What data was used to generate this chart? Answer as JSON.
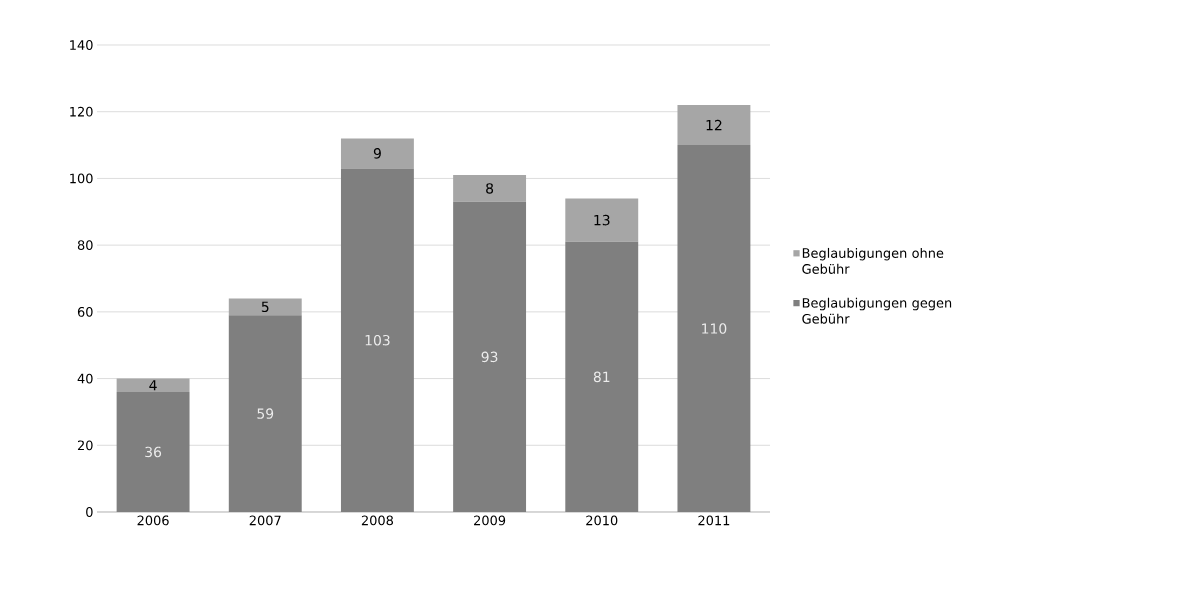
{
  "chart_data": {
    "type": "bar",
    "stacked": true,
    "categories": [
      "2006",
      "2007",
      "2008",
      "2009",
      "2010",
      "2011"
    ],
    "series": [
      {
        "name": "Beglaubigungen gegen Gebühr",
        "color": "#7f7f7f",
        "values": [
          36,
          59,
          103,
          93,
          81,
          110
        ]
      },
      {
        "name": "Beglaubigungen ohne Gebühr",
        "color": "#a6a6a6",
        "values": [
          4,
          5,
          9,
          8,
          13,
          12
        ]
      }
    ],
    "ylim": [
      0,
      140
    ],
    "yticks": [
      0,
      20,
      40,
      60,
      80,
      100,
      120,
      140
    ],
    "grid": "y",
    "legend": "right",
    "data_labels": true
  }
}
